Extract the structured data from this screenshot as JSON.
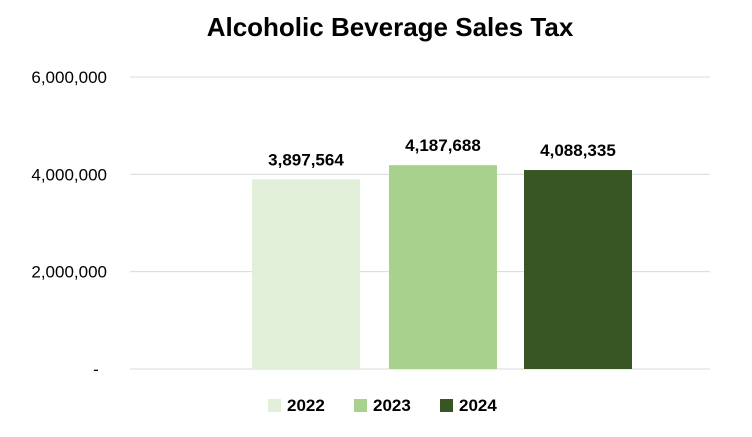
{
  "chart_data": {
    "type": "bar",
    "title": "Alcoholic Beverage Sales Tax",
    "xlabel": "",
    "ylabel": "",
    "ylim": [
      0,
      6000000
    ],
    "y_ticks": [
      0,
      2000000,
      4000000,
      6000000
    ],
    "y_tick_labels": [
      "-",
      "2,000,000",
      "4,000,000",
      "6,000,000"
    ],
    "grid": true,
    "legend_position": "bottom",
    "series": [
      {
        "name": "2022",
        "value": 3897564,
        "label": "3,897,564",
        "color": "#e2efd9"
      },
      {
        "name": "2023",
        "value": 4187688,
        "label": "4,187,688",
        "color": "#a9d18e"
      },
      {
        "name": "2024",
        "value": 4088335,
        "label": "4,088,335",
        "color": "#375623"
      }
    ]
  }
}
